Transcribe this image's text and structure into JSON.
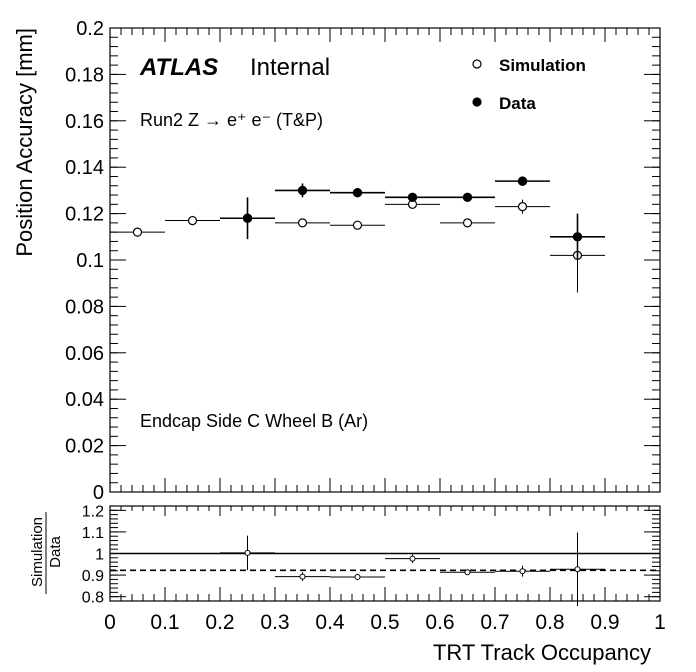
{
  "chart_data": [
    {
      "type": "scatter",
      "ylabel": "Position Accuracy [mm]",
      "xlim": [
        0,
        1
      ],
      "ylim": [
        0,
        0.2
      ],
      "x_ticks": [
        0,
        0.1,
        0.2,
        0.3,
        0.4,
        0.5,
        0.6,
        0.7,
        0.8,
        0.9,
        1
      ],
      "y_ticks": [
        0,
        0.02,
        0.04,
        0.06,
        0.08,
        0.1,
        0.12,
        0.14,
        0.16,
        0.18,
        0.2
      ],
      "annotations": {
        "atlas": "ATLAS",
        "internal": "Internal",
        "run": "Run2 Z → e⁺ e⁻ (T&P)",
        "region": "Endcap Side C Wheel B (Ar)"
      },
      "legend": {
        "position": "top-right",
        "entries": [
          "Simulation",
          "Data"
        ]
      },
      "series": [
        {
          "name": "Simulation",
          "marker": "open-circle",
          "x": [
            0.05,
            0.15,
            0.25,
            0.35,
            0.45,
            0.55,
            0.65,
            0.75,
            0.85
          ],
          "y": [
            0.112,
            0.117,
            0.118,
            0.116,
            0.115,
            0.124,
            0.116,
            0.123,
            0.102
          ],
          "yerr": [
            0.002,
            0.002,
            0.002,
            0.0015,
            0.0015,
            0.002,
            0.0015,
            0.003,
            0.016
          ],
          "xerr": [
            0.05,
            0.05,
            0.05,
            0.05,
            0.05,
            0.05,
            0.05,
            0.05,
            0.05
          ]
        },
        {
          "name": "Data",
          "marker": "filled-circle",
          "x": [
            0.25,
            0.35,
            0.45,
            0.55,
            0.65,
            0.75,
            0.85
          ],
          "y": [
            0.118,
            0.13,
            0.129,
            0.127,
            0.127,
            0.134,
            0.11
          ],
          "yerr": [
            0.009,
            0.003,
            0.002,
            0.0015,
            0.0015,
            0.002,
            0.01
          ],
          "xerr": [
            0.05,
            0.05,
            0.05,
            0.05,
            0.05,
            0.05,
            0.05
          ]
        }
      ]
    },
    {
      "type": "scatter",
      "ylabel_top": "Simulation",
      "ylabel_bottom": "Data",
      "xlabel": "TRT Track Occupancy",
      "xlim": [
        0,
        1
      ],
      "ylim": [
        0.78,
        1.22
      ],
      "x_ticks": [
        0,
        0.1,
        0.2,
        0.3,
        0.4,
        0.5,
        0.6,
        0.7,
        0.8,
        0.9,
        1
      ],
      "y_ticks": [
        0.8,
        0.9,
        1,
        1.1,
        1.2
      ],
      "reference_line": 1,
      "fit_line": 0.922,
      "series": [
        {
          "name": "Simulation/Data",
          "x": [
            0.25,
            0.35,
            0.45,
            0.55,
            0.65,
            0.75,
            0.85
          ],
          "y": [
            1.003,
            0.893,
            0.891,
            0.976,
            0.913,
            0.918,
            0.927
          ],
          "yerr": [
            0.08,
            0.02,
            0.015,
            0.02,
            0.012,
            0.025,
            0.17
          ],
          "xerr": [
            0.05,
            0.05,
            0.05,
            0.05,
            0.05,
            0.05,
            0.05
          ]
        }
      ]
    }
  ]
}
